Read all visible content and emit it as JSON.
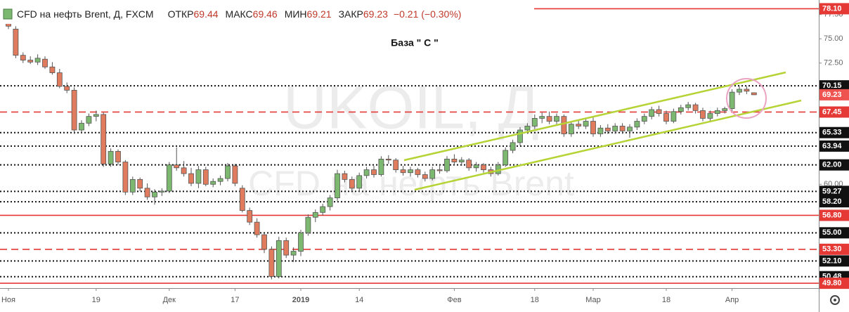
{
  "chart_data": {
    "type": "candlestick",
    "title": "CFD на нефть Brent, Д, FXCM",
    "stats": [
      {
        "label": "ОТКР",
        "value": 69.44
      },
      {
        "label": "МАКС",
        "value": 69.46
      },
      {
        "label": "МИН",
        "value": 69.21
      },
      {
        "label": "ЗАКР",
        "value": 69.23
      }
    ],
    "change": "−0.21 (−0.30%)",
    "annotation": "База  \" С \"",
    "watermark": [
      "UKOIL, Д",
      "CFD на нефть Brent"
    ],
    "up_color": "#7cb86f",
    "down_color": "#e07b5e",
    "ylim": [
      49.3,
      79.0
    ],
    "yticks": [
      {
        "value": 77.5,
        "label": "77.50"
      },
      {
        "value": 75,
        "label": "75.00"
      },
      {
        "value": 72.5,
        "label": "72.50"
      },
      {
        "value": 60,
        "label": "60.00"
      }
    ],
    "levels": [
      {
        "value": 78.1,
        "label": "78.10",
        "style": "solid",
        "color": "#e53935"
      },
      {
        "value": 70.15,
        "label": "70.15",
        "style": "dotted",
        "color": "#111111"
      },
      {
        "value": 67.45,
        "label": "67.45",
        "style": "dashed",
        "color": "#e53935"
      },
      {
        "value": 65.33,
        "label": "65.33",
        "style": "dotted",
        "color": "#111111"
      },
      {
        "value": 63.94,
        "label": "63.94",
        "style": "dotted",
        "color": "#111111"
      },
      {
        "value": 62,
        "label": "62.00",
        "style": "dotted",
        "color": "#111111"
      },
      {
        "value": 59.27,
        "label": "59.27",
        "style": "dotted",
        "color": "#111111"
      },
      {
        "value": 58.2,
        "label": "58.20",
        "style": "dotted",
        "color": "#111111"
      },
      {
        "value": 56.8,
        "label": "56.80",
        "style": "solid",
        "color": "#e53935"
      },
      {
        "value": 55,
        "label": "55.00",
        "style": "dotted",
        "color": "#111111"
      },
      {
        "value": 53.3,
        "label": "53.30",
        "style": "dashed",
        "color": "#e53935"
      },
      {
        "value": 52.1,
        "label": "52.10",
        "style": "dotted",
        "color": "#111111"
      },
      {
        "value": 50.48,
        "label": "50.48",
        "style": "dotted",
        "color": "#111111"
      },
      {
        "value": 49.8,
        "label": "49.80",
        "style": "solid",
        "color": "#e53935"
      }
    ],
    "categories": [
      "Ноя",
      null,
      null,
      null,
      null,
      null,
      null,
      null,
      null,
      null,
      null,
      null,
      "19",
      null,
      null,
      null,
      null,
      null,
      null,
      null,
      null,
      null,
      "Дек",
      null,
      null,
      null,
      null,
      null,
      null,
      null,
      null,
      "17",
      null,
      null,
      null,
      null,
      null,
      null,
      null,
      null,
      "2019",
      null,
      null,
      null,
      null,
      null,
      null,
      null,
      "14",
      null,
      null,
      null,
      null,
      null,
      null,
      null,
      null,
      null,
      null,
      null,
      null,
      "Фев",
      null,
      null,
      null,
      null,
      null,
      null,
      null,
      null,
      null,
      null,
      "18",
      null,
      null,
      null,
      null,
      null,
      null,
      null,
      "Мар",
      null,
      null,
      null,
      null,
      null,
      null,
      null,
      null,
      null,
      "18",
      null,
      null,
      null,
      null,
      null,
      null,
      null,
      null,
      "Апр",
      null,
      null,
      null
    ],
    "ohlc": [
      [
        77.2,
        77.5,
        76.0,
        76.3
      ],
      [
        76.0,
        76.3,
        73.0,
        73.3
      ],
      [
        73.3,
        73.6,
        72.5,
        72.8
      ],
      [
        72.8,
        73.2,
        72.4,
        72.6
      ],
      [
        72.6,
        73.4,
        72.3,
        73.0
      ],
      [
        72.9,
        73.2,
        71.9,
        72.1
      ],
      [
        72.1,
        72.6,
        71.3,
        71.5
      ],
      [
        71.5,
        71.9,
        69.9,
        70.1
      ],
      [
        70.1,
        70.5,
        69.4,
        69.7
      ],
      [
        69.7,
        70.0,
        65.2,
        65.6
      ],
      [
        65.6,
        66.6,
        65.3,
        66.3
      ],
      [
        66.3,
        67.3,
        66.0,
        67.0
      ],
      [
        67.0,
        67.6,
        66.5,
        67.2
      ],
      [
        67.2,
        67.4,
        61.8,
        62.1
      ],
      [
        62.1,
        63.7,
        61.8,
        63.4
      ],
      [
        63.4,
        63.6,
        62.0,
        62.3
      ],
      [
        62.3,
        62.5,
        58.9,
        59.2
      ],
      [
        59.2,
        60.8,
        58.9,
        60.5
      ],
      [
        60.5,
        60.7,
        59.3,
        59.6
      ],
      [
        59.6,
        60.1,
        58.4,
        58.7
      ],
      [
        58.7,
        59.5,
        57.9,
        59.2
      ],
      [
        59.2,
        59.6,
        58.8,
        59.3
      ],
      [
        59.3,
        62.3,
        59.1,
        62.0
      ],
      [
        62.0,
        63.8,
        61.4,
        61.7
      ],
      [
        61.7,
        62.4,
        60.8,
        61.1
      ],
      [
        61.1,
        61.7,
        59.8,
        60.1
      ],
      [
        60.1,
        61.9,
        59.6,
        61.5
      ],
      [
        61.5,
        61.8,
        59.8,
        60.0
      ],
      [
        60.0,
        60.6,
        59.7,
        60.3
      ],
      [
        60.3,
        60.9,
        59.9,
        60.6
      ],
      [
        60.6,
        62.2,
        60.3,
        61.9
      ],
      [
        61.9,
        62.1,
        59.8,
        60.1
      ],
      [
        59.6,
        59.9,
        57.1,
        57.3
      ],
      [
        57.3,
        57.6,
        55.8,
        56.1
      ],
      [
        56.1,
        56.5,
        54.5,
        54.8
      ],
      [
        54.8,
        55.0,
        52.9,
        53.3
      ],
      [
        53.3,
        53.6,
        50.2,
        50.5
      ],
      [
        50.5,
        54.6,
        50.3,
        54.2
      ],
      [
        54.2,
        54.5,
        52.4,
        52.7
      ],
      [
        52.7,
        53.5,
        52.0,
        53.1
      ],
      [
        53.1,
        55.3,
        52.6,
        55.0
      ],
      [
        55.0,
        56.9,
        54.7,
        56.6
      ],
      [
        56.6,
        57.4,
        56.1,
        57.1
      ],
      [
        57.1,
        58.0,
        56.8,
        57.7
      ],
      [
        57.7,
        58.9,
        57.3,
        58.6
      ],
      [
        58.6,
        61.5,
        58.3,
        61.1
      ],
      [
        61.1,
        61.4,
        60.2,
        60.5
      ],
      [
        60.5,
        60.8,
        59.3,
        59.6
      ],
      [
        59.6,
        61.2,
        59.2,
        60.9
      ],
      [
        60.9,
        61.8,
        60.6,
        61.5
      ],
      [
        61.5,
        61.9,
        60.7,
        61.0
      ],
      [
        61.0,
        62.9,
        60.8,
        62.6
      ],
      [
        62.6,
        63.0,
        62.1,
        62.5
      ],
      [
        62.5,
        62.7,
        61.2,
        61.5
      ],
      [
        61.5,
        61.9,
        60.9,
        61.2
      ],
      [
        61.2,
        61.8,
        60.8,
        61.5
      ],
      [
        61.5,
        61.7,
        60.7,
        61.0
      ],
      [
        61.0,
        61.3,
        60.3,
        60.6
      ],
      [
        60.6,
        61.8,
        60.4,
        61.5
      ],
      [
        61.5,
        62.0,
        61.1,
        61.4
      ],
      [
        61.4,
        62.9,
        61.2,
        62.6
      ],
      [
        62.6,
        63.1,
        62.0,
        62.3
      ],
      [
        62.3,
        62.8,
        61.9,
        62.5
      ],
      [
        62.5,
        62.7,
        61.4,
        61.7
      ],
      [
        61.7,
        62.3,
        61.3,
        62.0
      ],
      [
        62.0,
        62.2,
        61.2,
        61.5
      ],
      [
        61.5,
        61.8,
        60.8,
        61.1
      ],
      [
        61.1,
        62.3,
        60.9,
        62.0
      ],
      [
        62.0,
        63.8,
        61.8,
        63.5
      ],
      [
        63.5,
        64.6,
        63.2,
        64.3
      ],
      [
        64.3,
        65.9,
        64.0,
        65.6
      ],
      [
        65.6,
        66.3,
        65.2,
        66.0
      ],
      [
        66.0,
        67.2,
        65.7,
        66.8
      ],
      [
        66.8,
        67.4,
        66.3,
        67.0
      ],
      [
        67.0,
        67.5,
        66.2,
        66.5
      ],
      [
        66.5,
        67.3,
        66.2,
        67.0
      ],
      [
        67.0,
        67.2,
        64.9,
        65.2
      ],
      [
        65.2,
        66.5,
        64.9,
        66.2
      ],
      [
        66.2,
        66.6,
        65.7,
        66.0
      ],
      [
        66.0,
        66.8,
        65.7,
        66.5
      ],
      [
        66.5,
        66.9,
        64.9,
        65.2
      ],
      [
        65.2,
        66.1,
        64.9,
        65.8
      ],
      [
        65.8,
        66.2,
        65.2,
        65.5
      ],
      [
        65.5,
        66.3,
        65.2,
        66.0
      ],
      [
        66.0,
        66.3,
        65.2,
        65.5
      ],
      [
        65.5,
        66.2,
        64.8,
        65.9
      ],
      [
        65.9,
        66.8,
        65.6,
        66.5
      ],
      [
        66.5,
        67.3,
        66.2,
        67.0
      ],
      [
        67.0,
        68.0,
        66.7,
        67.7
      ],
      [
        67.7,
        68.1,
        67.0,
        67.3
      ],
      [
        67.3,
        67.6,
        66.2,
        66.5
      ],
      [
        66.5,
        67.8,
        66.3,
        67.5
      ],
      [
        67.5,
        68.2,
        67.2,
        67.9
      ],
      [
        67.9,
        68.5,
        67.6,
        68.2
      ],
      [
        68.2,
        68.4,
        67.3,
        67.6
      ],
      [
        67.6,
        67.9,
        66.5,
        66.8
      ],
      [
        66.8,
        67.6,
        66.5,
        67.3
      ],
      [
        67.3,
        67.9,
        67.0,
        67.6
      ],
      [
        67.6,
        68.0,
        67.3,
        67.8
      ],
      [
        67.8,
        69.8,
        67.5,
        69.5
      ],
      [
        69.5,
        70.1,
        69.2,
        69.8
      ],
      [
        69.8,
        70.1,
        69.3,
        69.6
      ],
      [
        69.44,
        69.46,
        69.21,
        69.23
      ]
    ]
  }
}
